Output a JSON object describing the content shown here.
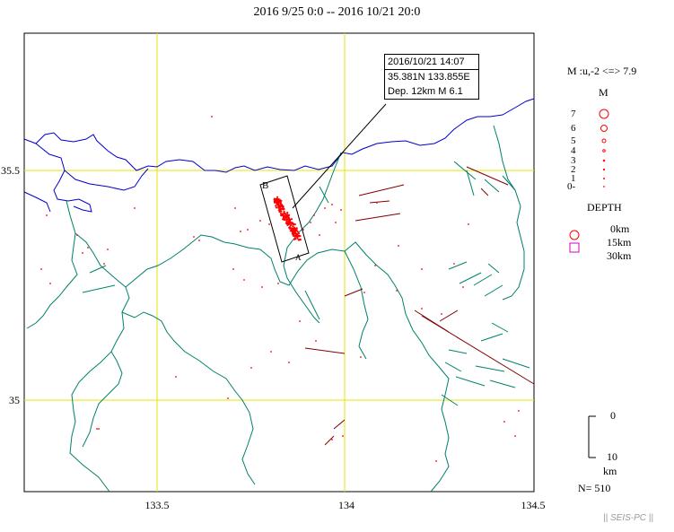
{
  "title": "2016 9/25 0:0 -- 2016 10/21 20:0",
  "axes": {
    "lon_ticks": [
      "133.5",
      "134",
      "134.5"
    ],
    "lat_ticks": [
      "35.5",
      "35"
    ]
  },
  "callout": {
    "datetime": "2016/10/21 14:07",
    "location": "35.381N   133.855E",
    "depth_mag": "Dep. 12km    M 6.1"
  },
  "cross_section": {
    "label_b": "B",
    "label_a": "A"
  },
  "magnitude_legend": {
    "range": "M :u,-2 <=> 7.9",
    "heading": "M",
    "levels": [
      "7",
      "6",
      "5",
      "4",
      "3",
      "2",
      "1",
      "0-"
    ]
  },
  "depth_legend": {
    "heading": "DEPTH",
    "items": [
      {
        "label": "0km",
        "symbol": "circle",
        "color": "#ff0000"
      },
      {
        "label": "15km",
        "symbol": "square",
        "color": "#cc00cc"
      },
      {
        "label": "30km",
        "symbol": "none",
        "color": "#000000"
      }
    ]
  },
  "depth_scale": {
    "top": "0",
    "bottom": "10",
    "unit": "km"
  },
  "count": "N= 510",
  "footer": "|| SEIS-PC ||",
  "colors": {
    "grid": "#e6e600",
    "coastline": "#0000cc",
    "prefecture_border": "#00806b",
    "active_fault": "#800000",
    "event": "#ff0000"
  },
  "mainshock": {
    "lat": 35.381,
    "lon": 133.855,
    "depth_km": 12,
    "magnitude": 6.1
  }
}
